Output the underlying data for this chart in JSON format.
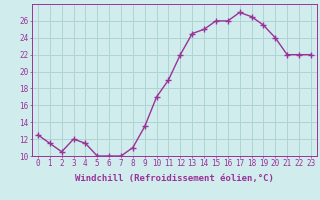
{
  "x": [
    0,
    1,
    2,
    3,
    4,
    5,
    6,
    7,
    8,
    9,
    10,
    11,
    12,
    13,
    14,
    15,
    16,
    17,
    18,
    19,
    20,
    21,
    22,
    23
  ],
  "y": [
    12.5,
    11.5,
    10.5,
    12.0,
    11.5,
    10.0,
    10.0,
    10.0,
    11.0,
    13.5,
    17.0,
    19.0,
    22.0,
    24.5,
    25.0,
    26.0,
    26.0,
    27.0,
    26.5,
    25.5,
    24.0,
    22.0,
    22.0,
    22.0
  ],
  "line_color": "#993399",
  "marker": "+",
  "bg_color": "#d0ecec",
  "grid_color": "#aed4d4",
  "xlabel": "Windchill (Refroidissement éolien,°C)",
  "ylim": [
    10,
    28
  ],
  "yticks": [
    10,
    12,
    14,
    16,
    18,
    20,
    22,
    24,
    26
  ],
  "xticks": [
    0,
    1,
    2,
    3,
    4,
    5,
    6,
    7,
    8,
    9,
    10,
    11,
    12,
    13,
    14,
    15,
    16,
    17,
    18,
    19,
    20,
    21,
    22,
    23
  ],
  "label_fontsize": 6.5,
  "tick_fontsize": 5.5,
  "line_width": 1.0,
  "marker_size": 4,
  "marker_edge_width": 1.0
}
